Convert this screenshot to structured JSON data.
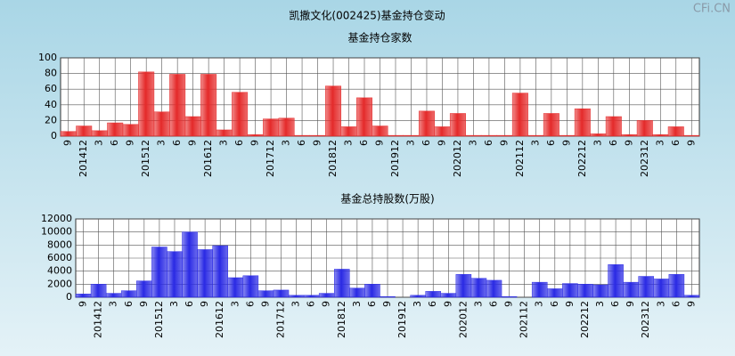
{
  "title": "凯撒文化(002425)基金持仓变动",
  "watermark": "CFi.CN",
  "chart_data": [
    {
      "type": "bar",
      "title": "基金持仓家数",
      "color": "#e52b2b",
      "categories": [
        "9",
        "201412",
        "3",
        "6",
        "9",
        "201512",
        "3",
        "6",
        "9",
        "201612",
        "3",
        "6",
        "9",
        "201712",
        "3",
        "6",
        "9",
        "201812",
        "3",
        "6",
        "9",
        "201912",
        "3",
        "6",
        "9",
        "202012",
        "3",
        "6",
        "9",
        "202112",
        "3",
        "6",
        "9",
        "202212",
        "3",
        "6",
        "9",
        "202312",
        "3",
        "6",
        "9"
      ],
      "values": [
        6,
        13,
        7,
        17,
        15,
        82,
        31,
        79,
        25,
        79,
        8,
        56,
        2,
        22,
        23,
        1,
        1,
        64,
        12,
        49,
        13,
        1,
        1,
        32,
        12,
        29,
        1,
        1,
        1,
        55,
        1,
        29,
        1,
        35,
        3,
        25,
        2,
        20,
        2,
        12,
        1
      ],
      "ylim": [
        0,
        100
      ],
      "yticks": [
        0,
        20,
        40,
        60,
        80,
        100
      ],
      "grid": true
    },
    {
      "type": "bar",
      "title": "基金总持股数(万股)",
      "color": "#2b2be5",
      "categories": [
        "9",
        "201412",
        "3",
        "6",
        "9",
        "201512",
        "3",
        "6",
        "9",
        "201612",
        "3",
        "6",
        "9",
        "201712",
        "3",
        "6",
        "9",
        "201812",
        "3",
        "6",
        "9",
        "201912",
        "3",
        "6",
        "9",
        "202012",
        "3",
        "6",
        "9",
        "202112",
        "3",
        "6",
        "9",
        "202212",
        "3",
        "6",
        "9",
        "202312",
        "3",
        "6",
        "9"
      ],
      "values": [
        500,
        2000,
        600,
        1000,
        2500,
        7700,
        7000,
        10000,
        7300,
        7900,
        3000,
        3300,
        1000,
        1100,
        300,
        300,
        600,
        4300,
        1400,
        2000,
        100,
        0,
        300,
        900,
        600,
        3500,
        2900,
        2600,
        100,
        0,
        2300,
        1300,
        2100,
        2000,
        1900,
        5000,
        2300,
        3200,
        2800,
        3500,
        300
      ],
      "ylim": [
        0,
        12000
      ],
      "yticks": [
        0,
        2000,
        4000,
        6000,
        8000,
        10000,
        12000
      ],
      "grid": true
    }
  ]
}
